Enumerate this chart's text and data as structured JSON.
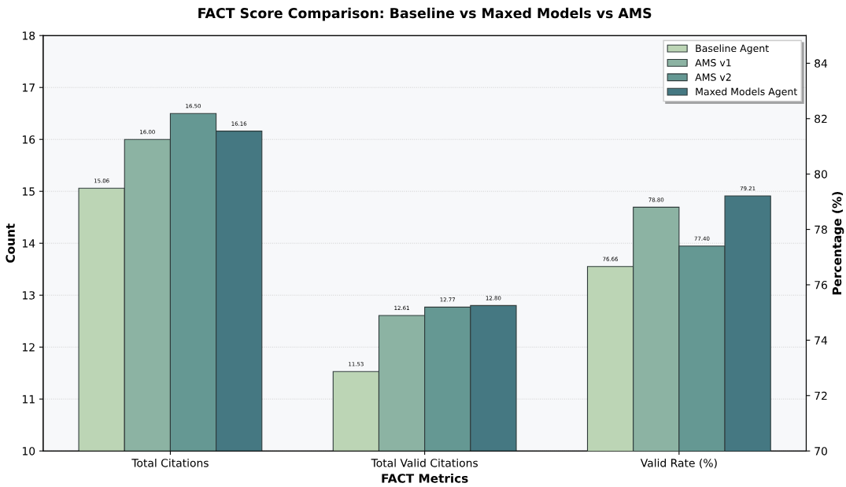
{
  "chart_data": {
    "type": "bar",
    "title": "FACT Score Comparison: Baseline vs Maxed Models vs AMS",
    "xlabel": "FACT Metrics",
    "ylabel": "Count",
    "y2label": "Percentage (%)",
    "categories": [
      "Total Citations",
      "Total Valid Citations",
      "Valid Rate (%)"
    ],
    "series": [
      {
        "name": "Baseline Agent",
        "color": "#bcd5b5",
        "values": [
          15.06,
          11.53,
          null
        ],
        "value_labels": [
          "15.06",
          "11.53",
          null
        ]
      },
      {
        "name": "AMS v1",
        "color": "#8cb3a3",
        "values": [
          16.0,
          12.61,
          null
        ],
        "value_labels": [
          "16.00",
          "12.61",
          null
        ]
      },
      {
        "name": "AMS v2",
        "color": "#659893",
        "values": [
          16.5,
          12.77,
          null
        ],
        "value_labels": [
          "16.50",
          "12.77",
          null
        ]
      },
      {
        "name": "Maxed Models Agent",
        "color": "#457882",
        "values": [
          16.16,
          12.8,
          null
        ],
        "value_labels": [
          "16.16",
          "12.80",
          null
        ]
      },
      {
        "color": "#bcd5b5",
        "axis": "y2",
        "values": [
          null,
          null,
          76.66
        ],
        "value_labels": [
          null,
          null,
          "76.66"
        ]
      },
      {
        "color": "#8cb3a3",
        "axis": "y2",
        "values": [
          null,
          null,
          78.8
        ],
        "value_labels": [
          null,
          null,
          "78.80"
        ]
      },
      {
        "color": "#659893",
        "axis": "y2",
        "values": [
          null,
          null,
          77.4
        ],
        "value_labels": [
          null,
          null,
          "77.40"
        ]
      },
      {
        "color": "#457882",
        "axis": "y2",
        "values": [
          null,
          null,
          79.21
        ],
        "value_labels": [
          null,
          null,
          "79.21"
        ]
      }
    ],
    "ylim": [
      10,
      18
    ],
    "yticks": [
      10,
      11,
      12,
      13,
      14,
      15,
      16,
      17,
      18
    ],
    "y2lim": [
      70,
      85
    ],
    "y2ticks": [
      70,
      72,
      74,
      76,
      78,
      80,
      82,
      84
    ],
    "grid": "y",
    "legend": "top right"
  }
}
